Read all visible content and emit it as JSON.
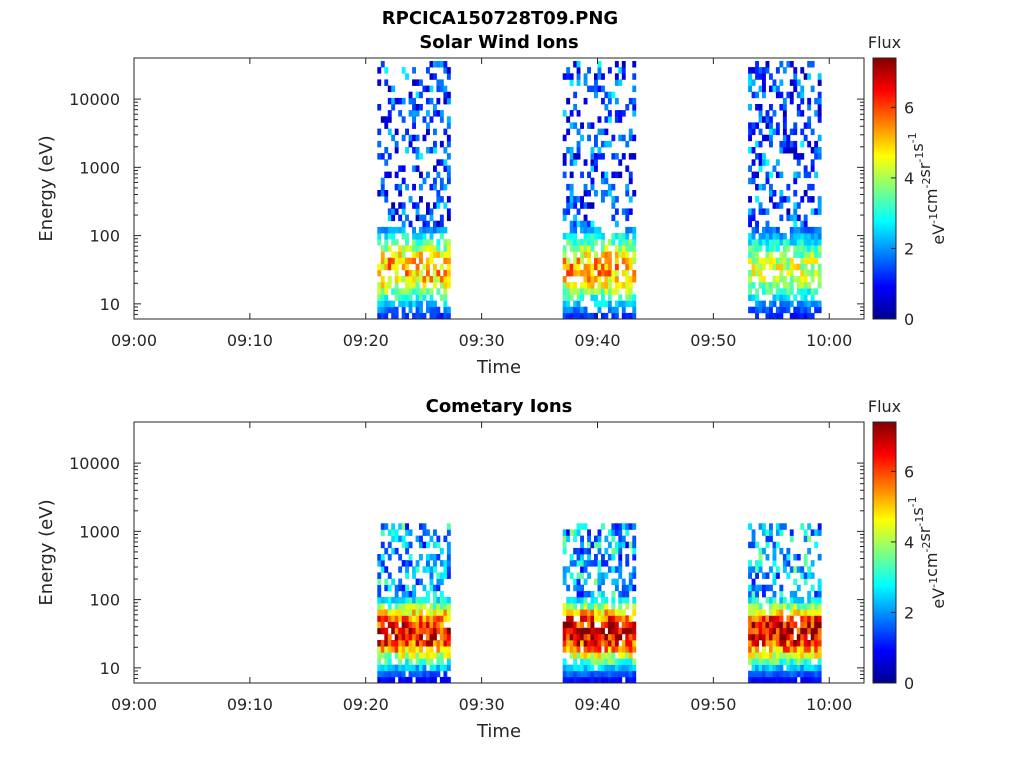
{
  "figure_title": "RPCICA150728T09.PNG",
  "colorbar": {
    "title": "Flux",
    "label_parts": [
      "eV",
      "-1",
      "cm",
      "-2",
      "sr",
      "-1",
      "s",
      "-1"
    ],
    "ticks": [
      "0",
      "2",
      "4",
      "6"
    ],
    "range": [
      0,
      7.4
    ],
    "colormap": "jet"
  },
  "chart_data": [
    {
      "type": "heatmap",
      "title": "Solar Wind Ions",
      "xlabel": "Time",
      "ylabel": "Energy (eV)",
      "yscale": "log",
      "ylim": [
        6,
        40000
      ],
      "xlim": [
        "09:00",
        "10:03"
      ],
      "x_ticks": [
        "09:00",
        "09:10",
        "09:20",
        "09:30",
        "09:40",
        "09:50",
        "10:00"
      ],
      "y_ticks": [
        "10",
        "100",
        "1000",
        "10000"
      ],
      "bursts": [
        {
          "start": "09:21",
          "end": "09:27",
          "peak_energy_eV": 30,
          "peak_flux": 5.5
        },
        {
          "start": "09:37",
          "end": "09:43",
          "peak_energy_eV": 30,
          "peak_flux": 5.5
        },
        {
          "start": "09:53",
          "end": "09:59",
          "peak_energy_eV": 30,
          "peak_flux": 4.5
        }
      ]
    },
    {
      "type": "heatmap",
      "title": "Cometary Ions",
      "xlabel": "Time",
      "ylabel": "Energy (eV)",
      "yscale": "log",
      "ylim": [
        6,
        40000
      ],
      "xlim": [
        "09:00",
        "10:03"
      ],
      "x_ticks": [
        "09:00",
        "09:10",
        "09:20",
        "09:30",
        "09:40",
        "09:50",
        "10:00"
      ],
      "y_ticks": [
        "10",
        "100",
        "1000",
        "10000"
      ],
      "bursts": [
        {
          "start": "09:21",
          "end": "09:27",
          "peak_energy_eV": 30,
          "peak_flux": 7.0
        },
        {
          "start": "09:37",
          "end": "09:43",
          "peak_energy_eV": 30,
          "peak_flux": 7.2
        },
        {
          "start": "09:53",
          "end": "09:59",
          "peak_energy_eV": 30,
          "peak_flux": 7.2
        }
      ]
    }
  ]
}
